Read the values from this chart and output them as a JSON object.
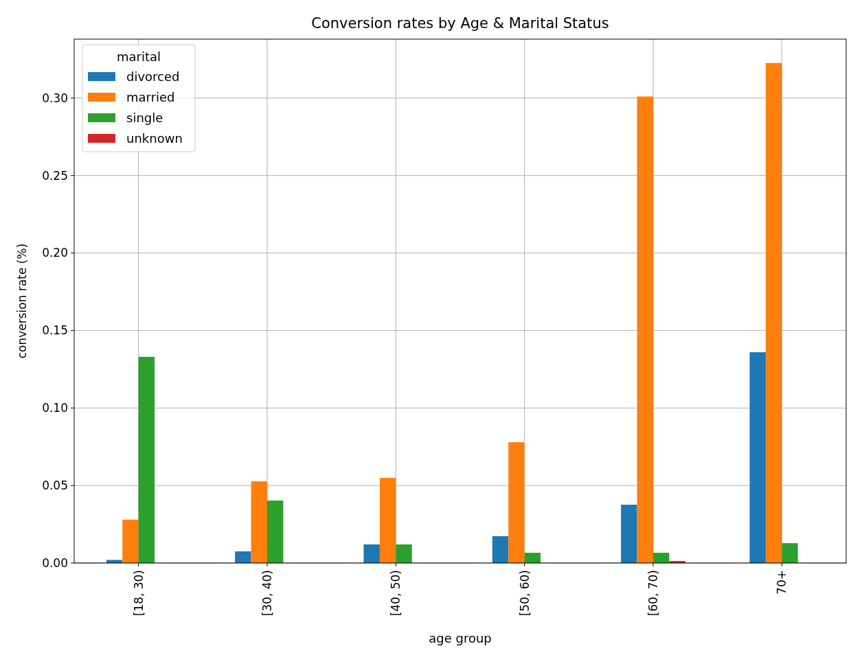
{
  "chart_data": {
    "type": "bar",
    "title": "Conversion rates by Age & Marital Status",
    "xlabel": "age group",
    "ylabel": "conversion rate (%)",
    "legend_title": "marital",
    "categories": [
      "[18, 30)",
      "[30, 40)",
      "[40, 50)",
      "[50, 60)",
      "[60, 70)",
      "70+"
    ],
    "series": [
      {
        "name": "divorced",
        "color": "#1f77b4",
        "values": [
          0.002,
          0.0075,
          0.012,
          0.0173,
          0.0376,
          0.136
        ]
      },
      {
        "name": "married",
        "color": "#ff7f0e",
        "values": [
          0.028,
          0.0527,
          0.0549,
          0.0779,
          0.301,
          0.3226
        ]
      },
      {
        "name": "single",
        "color": "#2ca02c",
        "values": [
          0.133,
          0.0403,
          0.012,
          0.0066,
          0.0066,
          0.0128
        ]
      },
      {
        "name": "unknown",
        "color": "#d62728",
        "values": [
          0,
          0,
          0,
          0,
          0.0013,
          0
        ]
      }
    ],
    "ylim": [
      0,
      0.338
    ],
    "yticks": [
      {
        "value": 0,
        "label": "0.00"
      },
      {
        "value": 0.05,
        "label": "0.05"
      },
      {
        "value": 0.1,
        "label": "0.10"
      },
      {
        "value": 0.15,
        "label": "0.15"
      },
      {
        "value": 0.2,
        "label": "0.20"
      },
      {
        "value": 0.25,
        "label": "0.25"
      },
      {
        "value": 0.3,
        "label": "0.30"
      }
    ],
    "grid": true,
    "legend": "top left"
  }
}
